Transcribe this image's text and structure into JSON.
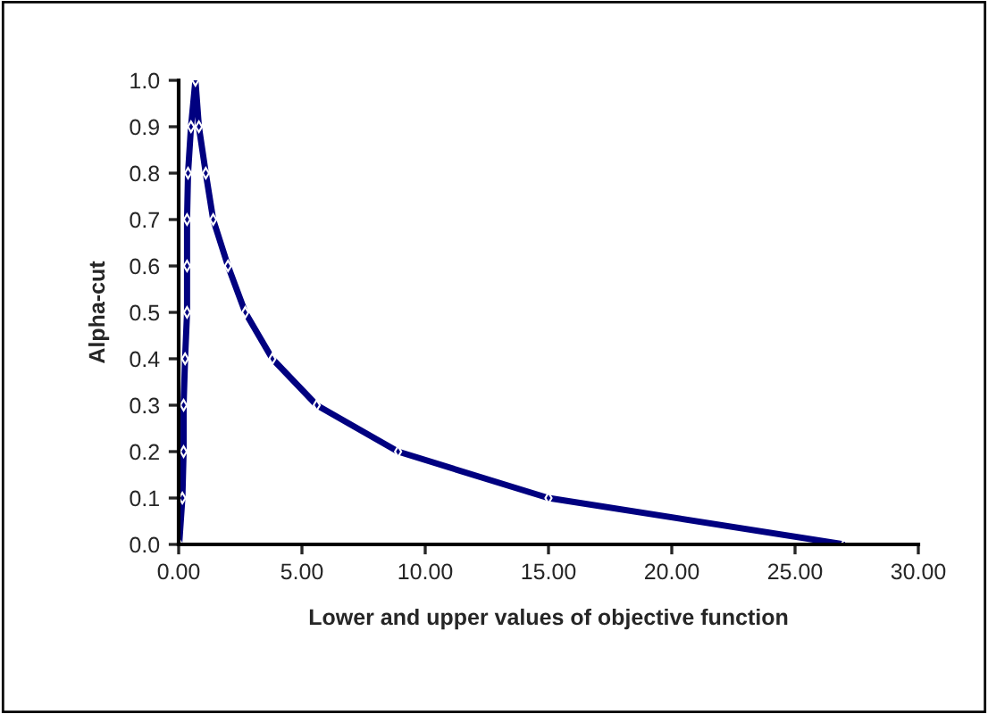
{
  "chart_data": {
    "type": "line",
    "xlabel": "Lower and upper values of objective function",
    "ylabel": "Alpha-cut",
    "series": [
      {
        "color": "#000080",
        "x": [
          0.02,
          0.15,
          0.2,
          0.2,
          0.26,
          0.34,
          0.34,
          0.34,
          0.38,
          0.5,
          0.68,
          0.82,
          1.1,
          1.4,
          2.0,
          2.7,
          3.8,
          5.6,
          8.9,
          15.0,
          27.0
        ],
        "values": [
          0.0,
          0.1,
          0.2,
          0.3,
          0.4,
          0.5,
          0.6,
          0.7,
          0.8,
          0.9,
          1.0,
          0.9,
          0.8,
          0.7,
          0.6,
          0.5,
          0.4,
          0.3,
          0.2,
          0.1,
          0.0
        ]
      }
    ],
    "xlim": [
      0,
      30
    ],
    "xticks": [
      {
        "value": 0,
        "label": "0.00"
      },
      {
        "value": 5,
        "label": "5.00"
      },
      {
        "value": 10,
        "label": "10.00"
      },
      {
        "value": 15,
        "label": "15.00"
      },
      {
        "value": 20,
        "label": "20.00"
      },
      {
        "value": 25,
        "label": "25.00"
      },
      {
        "value": 30,
        "label": "30.00"
      }
    ],
    "ylim": [
      0,
      1
    ],
    "yticks": [
      {
        "value": 0,
        "label": "0.0"
      },
      {
        "value": 0.1,
        "label": "0.1"
      },
      {
        "value": 0.2,
        "label": "0.2"
      },
      {
        "value": 0.3,
        "label": "0.3"
      },
      {
        "value": 0.4,
        "label": "0.4"
      },
      {
        "value": 0.5,
        "label": "0.5"
      },
      {
        "value": 0.6,
        "label": "0.6"
      },
      {
        "value": 0.7,
        "label": "0.7"
      },
      {
        "value": 0.8,
        "label": "0.8"
      },
      {
        "value": 0.9,
        "label": "0.9"
      },
      {
        "value": 1.0,
        "label": "1.0"
      }
    ],
    "grid": false,
    "legend": false,
    "marker": "diamond",
    "line_style": "solid"
  }
}
